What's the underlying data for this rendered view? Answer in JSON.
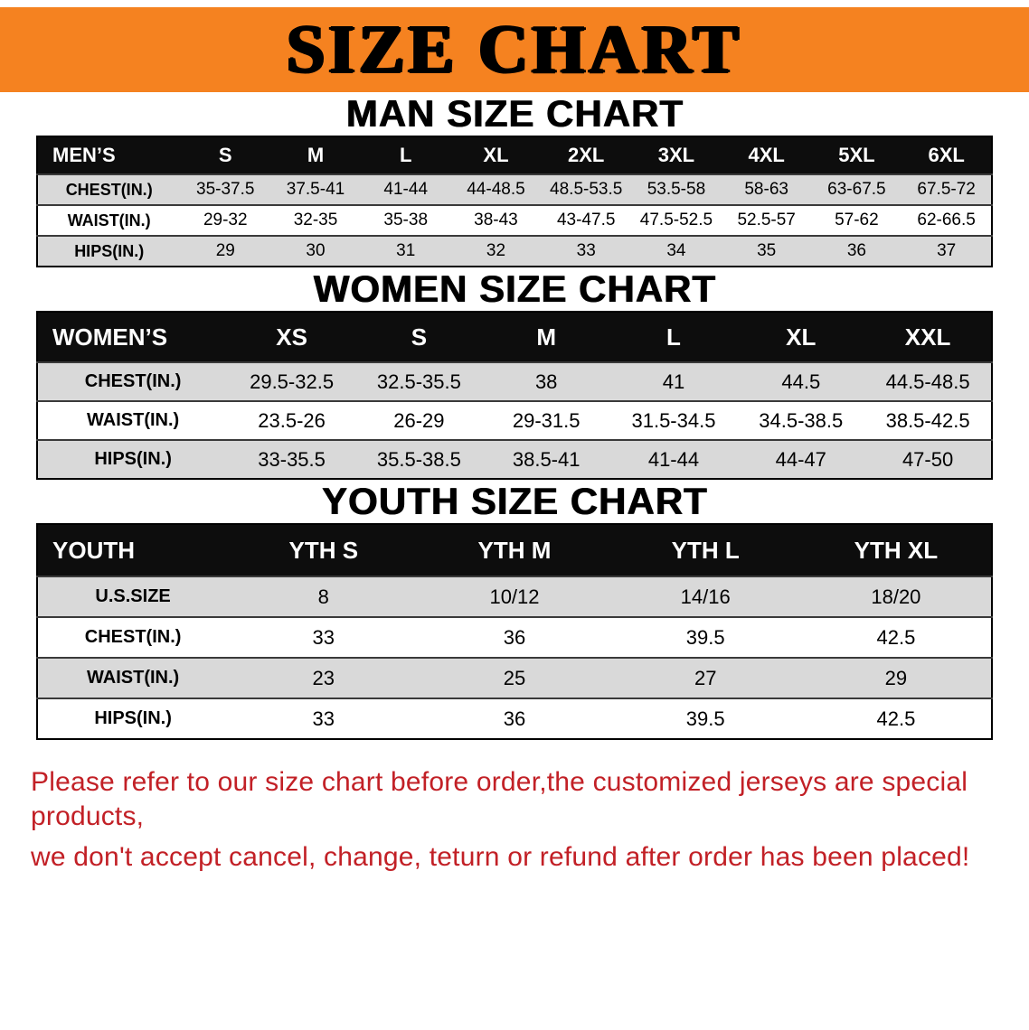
{
  "banner": {
    "title": "SIZE CHART"
  },
  "colors": {
    "banner_bg": "#f58220",
    "table_header_bg": "#0d0d0d",
    "row_stripe": "#d9d9d9",
    "note_red": "#c22026"
  },
  "sections": [
    {
      "heading": "MAN SIZE CHART",
      "table": {
        "header": [
          "MEN’S",
          "S",
          "M",
          "L",
          "XL",
          "2XL",
          "3XL",
          "4XL",
          "5XL",
          "6XL"
        ],
        "rows": [
          {
            "label": "CHEST(IN.)",
            "values": [
              "35-37.5",
              "37.5-41",
              "41-44",
              "44-48.5",
              "48.5-53.5",
              "53.5-58",
              "58-63",
              "63-67.5",
              "67.5-72"
            ]
          },
          {
            "label": "WAIST(IN.)",
            "values": [
              "29-32",
              "32-35",
              "35-38",
              "38-43",
              "43-47.5",
              "47.5-52.5",
              "52.5-57",
              "57-62",
              "62-66.5"
            ]
          },
          {
            "label": "HIPS(IN.)",
            "values": [
              "29",
              "30",
              "31",
              "32",
              "33",
              "34",
              "35",
              "36",
              "37"
            ]
          }
        ]
      }
    },
    {
      "heading": "WOMEN SIZE CHART",
      "table": {
        "header": [
          "WOMEN’S",
          "XS",
          "S",
          "M",
          "L",
          "XL",
          "XXL"
        ],
        "rows": [
          {
            "label": "CHEST(IN.)",
            "values": [
              "29.5-32.5",
              "32.5-35.5",
              "38",
              "41",
              "44.5",
              "44.5-48.5"
            ]
          },
          {
            "label": "WAIST(IN.)",
            "values": [
              "23.5-26",
              "26-29",
              "29-31.5",
              "31.5-34.5",
              "34.5-38.5",
              "38.5-42.5"
            ]
          },
          {
            "label": "HIPS(IN.)",
            "values": [
              "33-35.5",
              "35.5-38.5",
              "38.5-41",
              "41-44",
              "44-47",
              "47-50"
            ]
          }
        ]
      }
    },
    {
      "heading": "YOUTH SIZE CHART",
      "table": {
        "header": [
          "YOUTH",
          "YTH S",
          "YTH M",
          "YTH L",
          "YTH XL"
        ],
        "rows": [
          {
            "label": "U.S.SIZE",
            "values": [
              "8",
              "10/12",
              "14/16",
              "18/20"
            ]
          },
          {
            "label": "CHEST(IN.)",
            "values": [
              "33",
              "36",
              "39.5",
              "42.5"
            ]
          },
          {
            "label": "WAIST(IN.)",
            "values": [
              "23",
              "25",
              "27",
              "29"
            ]
          },
          {
            "label": "HIPS(IN.)",
            "values": [
              "33",
              "36",
              "39.5",
              "42.5"
            ]
          }
        ]
      }
    }
  ],
  "footer": {
    "line1": "Please refer to our size chart before order,the customized jerseys are special products,",
    "line2": "we don't accept cancel, change, teturn or refund after order has been placed!"
  }
}
